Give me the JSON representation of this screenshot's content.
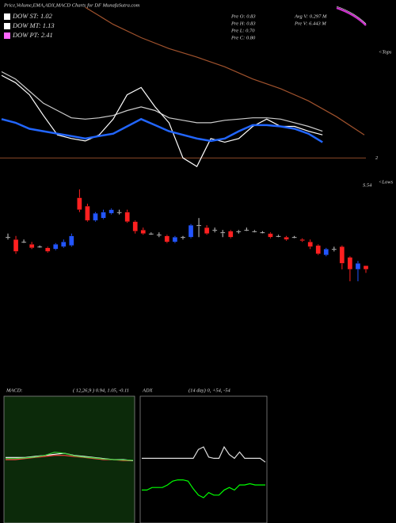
{
  "header": {
    "title": "Price,Volume,EMA,ADX,MACD Charts for DF MunafaSutra.com",
    "legend": [
      {
        "label": "DOW ST: 1.02",
        "color": "#ffffff"
      },
      {
        "label": "DOW MT: 1.13",
        "color": "#ffffff"
      },
      {
        "label": "DOW PT: 2.41",
        "color": "#ff66ff"
      }
    ],
    "stats_left": [
      "Pre  O: 0.83",
      "Pre  H: 0.83",
      "Pre  L: 0.70",
      "Pre  C: 0.80"
    ],
    "stats_right": [
      "Avg V: 0.297 M",
      "Pre  V: 6.443 M"
    ],
    "tops": "<Tops",
    "lows": "<Lows",
    "last_label": "S.54"
  },
  "chart_data": [
    {
      "type": "line",
      "ylim": [
        0,
        15
      ],
      "yticks": [
        2
      ],
      "grid_color": "#a0522d",
      "series": [
        {
          "color": "#a0522d",
          "start": 6,
          "step": 2,
          "values": [
            14.4,
            13.0,
            11.9,
            11.0,
            10.3,
            9.5,
            8.5,
            7.7,
            6.7,
            5.4,
            3.9
          ]
        },
        {
          "color": "#cccccc",
          "start": 0,
          "step": 1,
          "values": [
            9.1,
            8.5,
            7.5,
            6.5,
            5.9,
            5.3,
            5.2,
            5.3,
            5.5,
            5.9,
            6.2,
            5.9,
            5.3,
            5.1,
            4.9,
            4.9,
            5.1,
            5.2,
            5.3,
            5.3,
            5.2,
            4.9,
            4.6,
            4.2
          ]
        },
        {
          "color": "#ffffff",
          "start": 0,
          "step": 1,
          "values": [
            8.8,
            8.2,
            7.2,
            5.5,
            3.9,
            3.6,
            3.4,
            3.9,
            5.2,
            7.2,
            7.8,
            6.2,
            4.9,
            2.0,
            1.3,
            3.6,
            3.3,
            3.6,
            4.6,
            5.2,
            4.6,
            4.6,
            4.2,
            3.9
          ]
        },
        {
          "color": "#2266ff",
          "start": 0,
          "step": 1,
          "values": [
            5.2,
            4.9,
            4.4,
            4.2,
            4.0,
            3.8,
            3.6,
            3.8,
            4.0,
            4.6,
            5.2,
            4.7,
            4.2,
            3.9,
            3.6,
            3.4,
            3.6,
            4.2,
            4.7,
            4.7,
            4.6,
            4.4,
            4.0,
            3.3
          ]
        }
      ]
    },
    {
      "type": "candlestick",
      "ylim": [
        0.6,
        1.53
      ],
      "up_color": "#2255ff",
      "down_color": "#ff2020",
      "flat_color": "#ffffff",
      "open": [
        1.07,
        1.05,
        1.03,
        1.01,
        0.99,
        0.98,
        0.97,
        0.99,
        1.0,
        1.4,
        1.33,
        1.21,
        1.23,
        1.27,
        1.28,
        1.28,
        1.2,
        1.13,
        1.1,
        1.09,
        1.08,
        1.03,
        1.07,
        1.07,
        1.17,
        1.15,
        1.13,
        1.11,
        1.12,
        1.12,
        1.13,
        1.12,
        1.11,
        1.1,
        1.08,
        1.07,
        1.07,
        1.05,
        1.03,
        1.0,
        0.92,
        0.97,
        0.99,
        0.9,
        0.8,
        0.83
      ],
      "high": [
        1.1,
        1.08,
        1.05,
        1.03,
        1.0,
        0.99,
        1.02,
        1.05,
        1.1,
        1.47,
        1.35,
        1.28,
        1.3,
        1.31,
        1.3,
        1.3,
        1.21,
        1.15,
        1.11,
        1.11,
        1.09,
        1.08,
        1.08,
        1.18,
        1.23,
        1.17,
        1.15,
        1.13,
        1.13,
        1.13,
        1.15,
        1.13,
        1.12,
        1.11,
        1.09,
        1.08,
        1.08,
        1.06,
        1.05,
        1.01,
        0.98,
        0.99,
        1.0,
        0.91,
        0.87,
        0.83
      ],
      "low": [
        1.05,
        0.93,
        1.02,
        0.97,
        0.98,
        0.94,
        0.96,
        0.98,
        0.99,
        1.28,
        1.2,
        1.2,
        1.22,
        1.26,
        1.26,
        1.19,
        1.1,
        1.09,
        1.09,
        1.07,
        1.02,
        1.02,
        1.05,
        1.06,
        1.07,
        1.09,
        1.11,
        1.07,
        1.06,
        1.1,
        1.12,
        1.11,
        1.1,
        1.06,
        1.07,
        1.04,
        1.06,
        1.03,
        0.97,
        0.92,
        0.91,
        0.95,
        0.8,
        0.7,
        0.7,
        0.77
      ],
      "close": [
        1.07,
        0.95,
        1.03,
        0.98,
        0.99,
        0.95,
        1.01,
        1.03,
        1.08,
        1.3,
        1.21,
        1.27,
        1.28,
        1.3,
        1.28,
        1.2,
        1.12,
        1.1,
        1.1,
        1.09,
        1.03,
        1.07,
        1.07,
        1.17,
        1.17,
        1.1,
        1.13,
        1.11,
        1.07,
        1.12,
        1.13,
        1.12,
        1.11,
        1.07,
        1.08,
        1.05,
        1.07,
        1.04,
        0.99,
        0.93,
        0.97,
        0.97,
        0.85,
        0.8,
        0.85,
        0.8
      ]
    },
    {
      "type": "line",
      "label": "MACD:",
      "params": "( 12,26,9 ) 0.94, 1.05, -0.11",
      "background": "#0c2a0a",
      "ylim": [
        -3,
        3
      ],
      "series": [
        {
          "color": "#ff4040",
          "start": 0,
          "step": 1,
          "values": [
            0,
            0,
            0.05,
            0.1,
            0.15,
            0.2,
            0.2,
            0.15,
            0.1,
            0.05,
            0,
            0,
            -0.05,
            -0.05
          ]
        },
        {
          "color": "#ffffff",
          "start": 0,
          "step": 1,
          "values": [
            0.1,
            0.1,
            0.1,
            0.15,
            0.2,
            0.25,
            0.3,
            0.2,
            0.15,
            0.1,
            0.05,
            0,
            0,
            -0.05
          ]
        },
        {
          "color": "#33cc33",
          "start": 0,
          "step": 1,
          "values": [
            0.05,
            0.05,
            0.08,
            0.12,
            0.2,
            0.35,
            0.3,
            0.18,
            0.12,
            0.08,
            0.03,
            0,
            -0.02,
            -0.03
          ]
        }
      ]
    },
    {
      "type": "line",
      "label": "ADX",
      "params": "(14  day) 0, +54, -54",
      "background": "#000000",
      "ylim": [
        0,
        100
      ],
      "series": [
        {
          "color": "#dddddd",
          "start": 0,
          "step": 1,
          "values": [
            51,
            51,
            51,
            51,
            51,
            51,
            51,
            51,
            51,
            51,
            51,
            58,
            60,
            52,
            51,
            51,
            60,
            54,
            51,
            56,
            51,
            51,
            51,
            51,
            48
          ]
        },
        {
          "color": "#00ff00",
          "start": 0,
          "step": 1,
          "values": [
            26,
            26,
            28,
            28,
            28,
            30,
            33,
            34,
            34,
            33,
            27,
            22,
            20,
            24,
            22,
            22,
            26,
            28,
            26,
            30,
            30,
            31,
            30,
            30,
            30
          ]
        }
      ]
    }
  ]
}
